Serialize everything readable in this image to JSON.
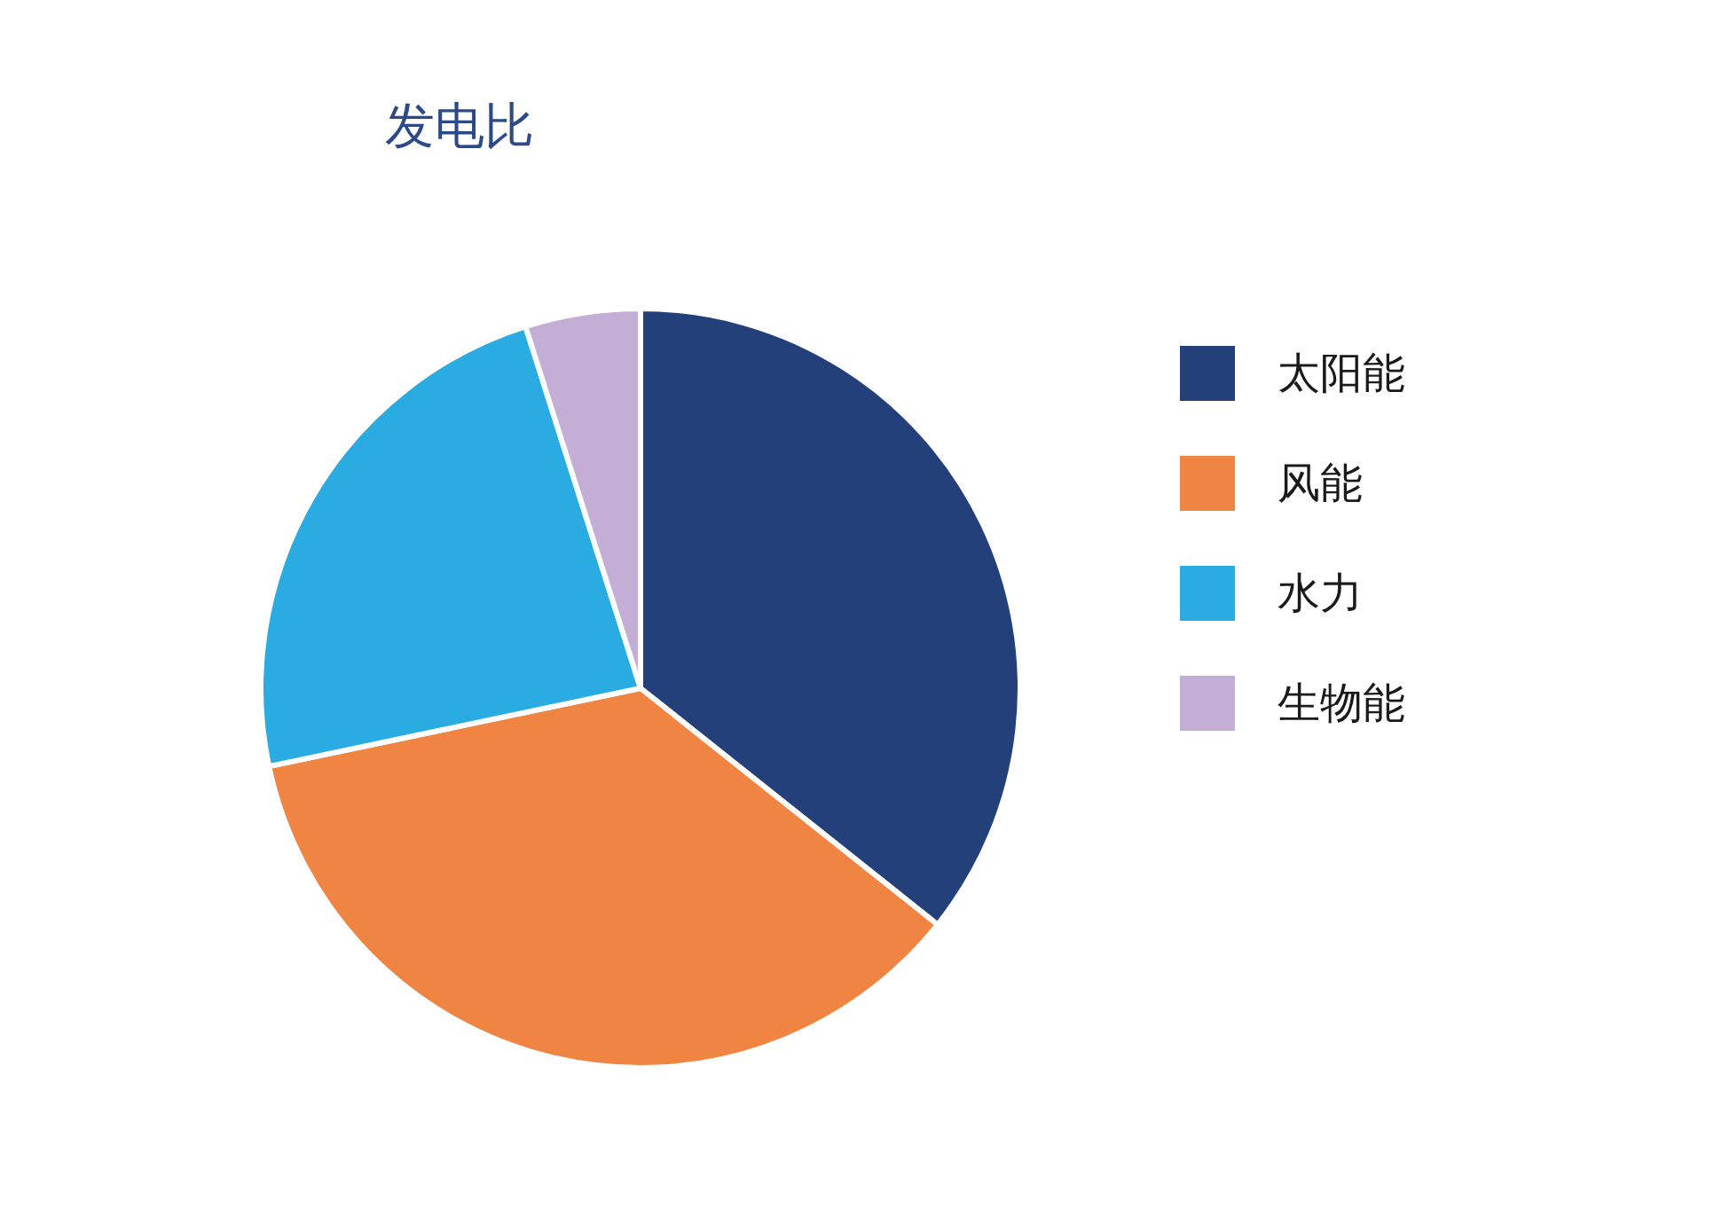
{
  "chart_data": {
    "type": "pie",
    "title": "发电比",
    "categories": [
      "太阳能",
      "风能",
      "水力",
      "生物能"
    ],
    "values": [
      35.7,
      36,
      23.4,
      4.9
    ],
    "colors": [
      "#24407a",
      "#f08442",
      "#2aace2",
      "#c5aed6"
    ],
    "legend": "right"
  }
}
